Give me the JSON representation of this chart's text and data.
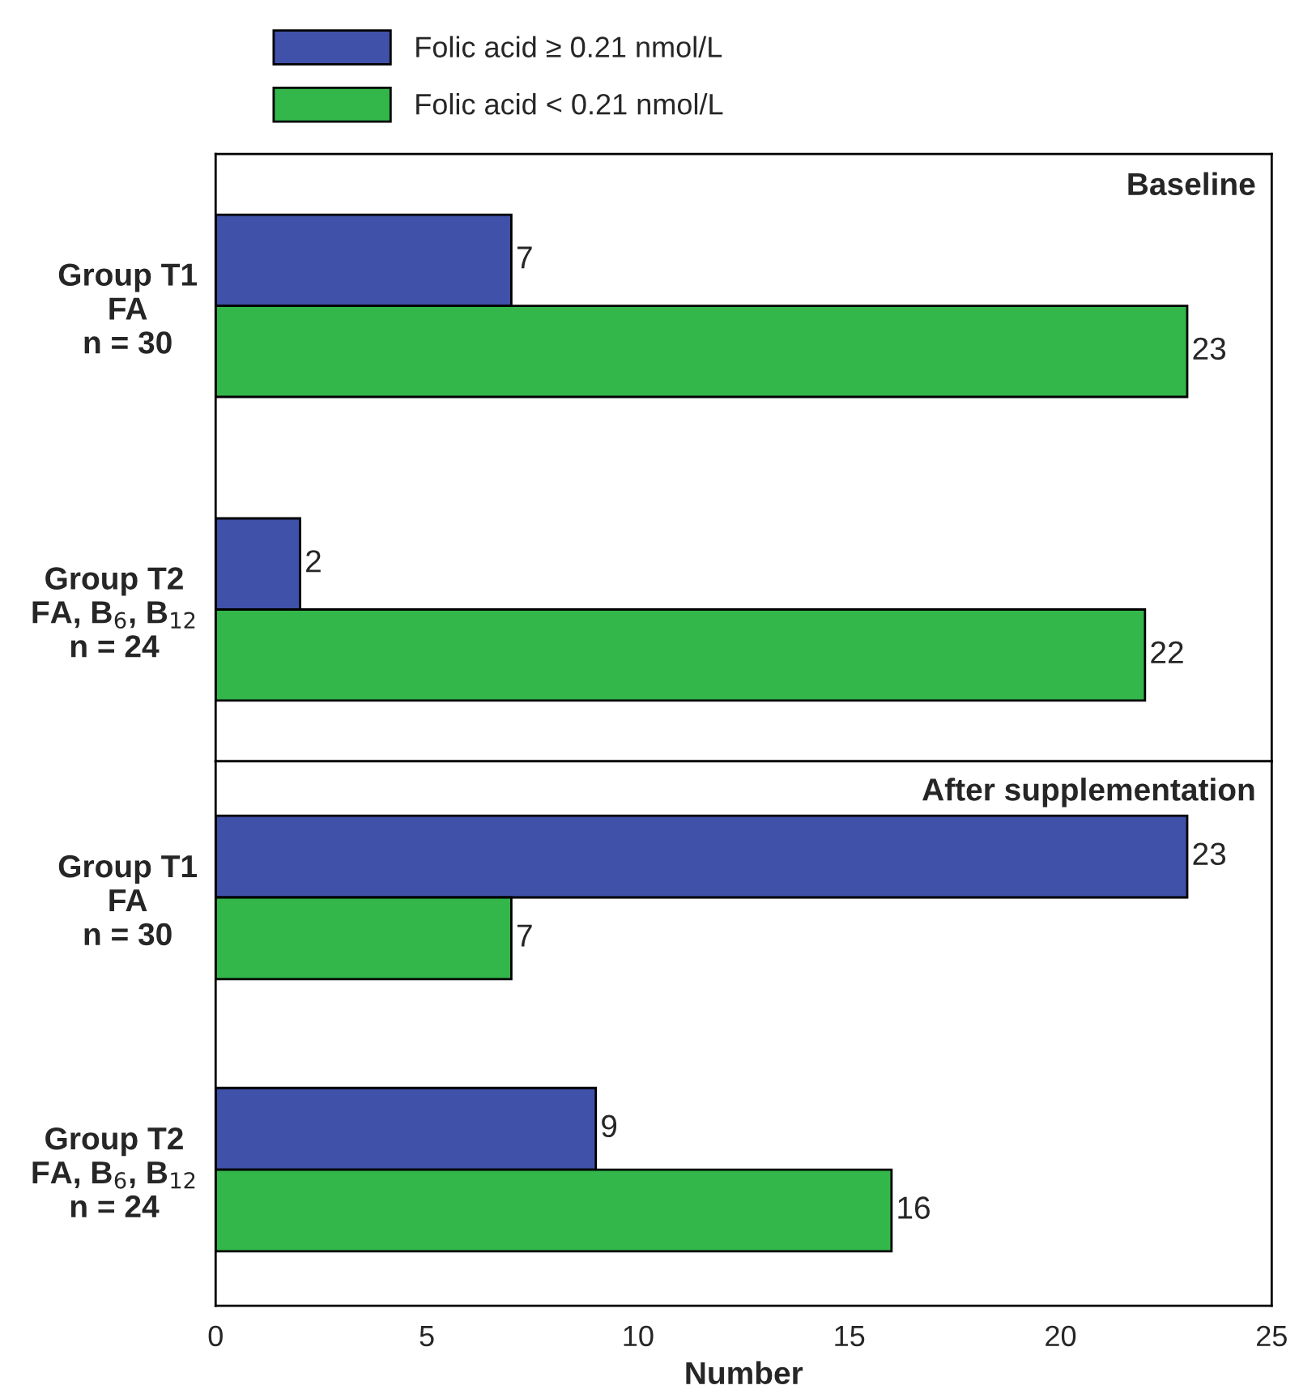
{
  "chart_data": [
    {
      "type": "bar",
      "orientation": "horizontal",
      "title": "Baseline",
      "categories": [
        "Group T1\nFA\nn = 30",
        "Group T2\nFA, B$_{6}$, B$_{12}$\nn = 24"
      ],
      "series": [
        {
          "name": "Folic acid ≥ 0.21 nmol/L",
          "color": "#3f51a8",
          "values": [
            7,
            2
          ]
        },
        {
          "name": "Folic acid < 0.21 nmol/L",
          "color": "#33b74a",
          "values": [
            23,
            22
          ]
        }
      ],
      "xlim": [
        0,
        25
      ],
      "xticks": [
        0,
        5,
        10,
        15,
        20,
        25
      ],
      "tick_labels": "y",
      "data_labels": true,
      "legend": "top",
      "grid": false
    },
    {
      "type": "bar",
      "orientation": "horizontal",
      "title": "After supplementation",
      "categories": [
        "Group T1\nFA\nn = 30",
        "Group T2\nFA, B$_{6}$, B$_{12}$\nn = 24"
      ],
      "series": [
        {
          "color": "#3f51a8",
          "values": [
            23,
            9
          ]
        },
        {
          "color": "#33b74a",
          "values": [
            7,
            16
          ]
        }
      ],
      "xlim": [
        0,
        25
      ],
      "xticks": [
        0,
        5,
        10,
        15,
        20,
        25
      ],
      "xlabel": "Number",
      "data_labels": true,
      "grid": false
    }
  ]
}
